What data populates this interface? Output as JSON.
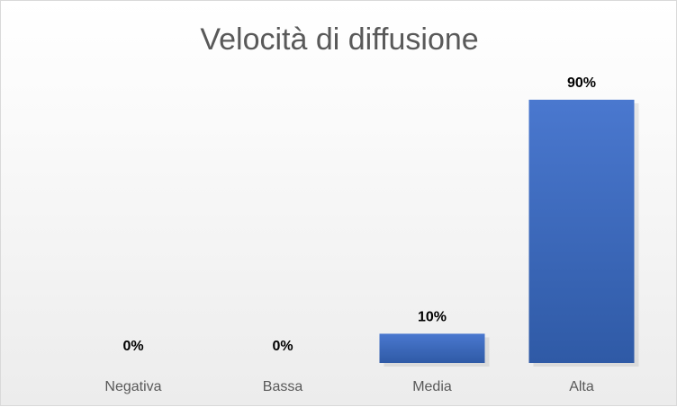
{
  "chart_data": {
    "type": "bar",
    "title": "Velocità di diffusione",
    "xlabel": "",
    "ylabel": "",
    "categories": [
      "Negativa",
      "Bassa",
      "Media",
      "Alta"
    ],
    "values": [
      0,
      0,
      10,
      90
    ],
    "data_labels": [
      "0%",
      "0%",
      "10%",
      "90%"
    ],
    "ylim": [
      0,
      100
    ],
    "grid": false,
    "legend": "none",
    "bar_color": "#4472C4"
  }
}
